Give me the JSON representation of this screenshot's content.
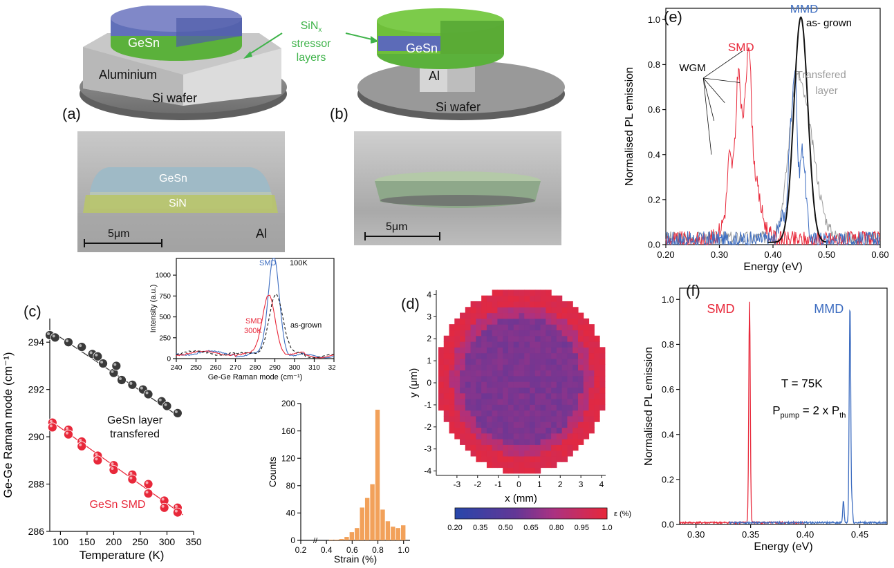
{
  "figure": {
    "panel_labels": {
      "a": "(a)",
      "b": "(b)",
      "c": "(c)",
      "d": "(d)",
      "e": "(e)",
      "f": "(f)"
    },
    "schematic_a": {
      "gesn": "GeSn",
      "aluminium": "Aluminium",
      "si_wafer": "Si wafer"
    },
    "schematic_b": {
      "gesn": "GeSn",
      "al": "Al",
      "si_wafer": "Si wafer"
    },
    "stressor_label": {
      "line1": "SiN",
      "sub": "x",
      "line2": "stressor layers"
    },
    "sem_a": {
      "gesn": "GeSn",
      "sin": "SiN",
      "al": "Al",
      "scale": "5μm"
    },
    "sem_b": {
      "scale": "5μm"
    }
  },
  "colors": {
    "gesn_blue": "#5c6bb8",
    "sin_green": "#6fbf3a",
    "smd_red": "#e8283a",
    "mmd_blue": "#3c6cc0",
    "grey": "#9a9a9a",
    "orange": "#f2a15a",
    "stressor_green": "#3fb34a"
  },
  "chart_data": [
    {
      "id": "c",
      "type": "scatter",
      "xlabel": "Temperature (K)",
      "ylabel": "Ge-Ge Raman mode (cm⁻¹)",
      "xlim": [
        80,
        350
      ],
      "ylim": [
        286,
        295
      ],
      "xticks": [
        100,
        150,
        200,
        250,
        300,
        350
      ],
      "yticks": [
        286,
        288,
        290,
        292,
        294
      ],
      "series": [
        {
          "name": "GeSn layer transfered",
          "label_lines": [
            "GeSn layer",
            "transfered"
          ],
          "color": "#3a3a3a",
          "fit": [
            [
              80,
              294.5
            ],
            [
              320,
              290.9
            ]
          ],
          "points": [
            [
              80,
              294.3
            ],
            [
              90,
              294.2
            ],
            [
              115,
              294.0
            ],
            [
              140,
              293.8
            ],
            [
              160,
              293.5
            ],
            [
              170,
              293.4
            ],
            [
              180,
              293.1
            ],
            [
              200,
              292.7
            ],
            [
              205,
              293.0
            ],
            [
              215,
              292.4
            ],
            [
              235,
              292.2
            ],
            [
              255,
              292.0
            ],
            [
              265,
              291.8
            ],
            [
              290,
              291.5
            ],
            [
              300,
              291.3
            ],
            [
              320,
              291.0
            ]
          ]
        },
        {
          "name": "GeSn SMD",
          "label_lines": [
            "GeSn SMD"
          ],
          "color": "#e8283a",
          "fit": [
            [
              80,
              290.7
            ],
            [
              330,
              286.7
            ]
          ],
          "points": [
            [
              85,
              290.6
            ],
            [
              85,
              290.4
            ],
            [
              115,
              290.3
            ],
            [
              115,
              290.1
            ],
            [
              140,
              289.8
            ],
            [
              140,
              289.6
            ],
            [
              170,
              289.2
            ],
            [
              170,
              289.0
            ],
            [
              200,
              288.8
            ],
            [
              200,
              288.6
            ],
            [
              235,
              288.4
            ],
            [
              235,
              288.2
            ],
            [
              265,
              288.0
            ],
            [
              265,
              287.6
            ],
            [
              295,
              287.3
            ],
            [
              295,
              287.0
            ],
            [
              320,
              287.0
            ],
            [
              320,
              286.8
            ]
          ]
        }
      ]
    },
    {
      "id": "c-inset",
      "type": "line",
      "xlabel": "Ge-Ge Raman mode (cm⁻¹)",
      "ylabel": "Intensity (a.u.)",
      "xlim": [
        240,
        320
      ],
      "ylim": [
        0,
        1200
      ],
      "xticks": [
        240,
        250,
        260,
        270,
        280,
        290,
        300,
        310,
        320
      ],
      "yticks": [
        0,
        250,
        500,
        750,
        1000
      ],
      "annotations": {
        "smd_100k_a": "SMD",
        "smd_100k_b": "100K",
        "smd_300k_a": "SMD",
        "smd_300k_b": "300K",
        "asgrown": "as-grown"
      },
      "series": [
        {
          "name": "SMD 100K",
          "color": "#3c6cc0",
          "peak": 289.5,
          "height": 1180,
          "width": 2.8
        },
        {
          "name": "SMD 300K",
          "color": "#e8283a",
          "peak": 287,
          "height": 730,
          "width": 3.2
        },
        {
          "name": "as-grown",
          "color": "#111111",
          "dashed": true,
          "peak": 290.5,
          "height": 740,
          "width": 3.5
        }
      ]
    },
    {
      "id": "histogram",
      "type": "bar",
      "xlabel": "Strain (%)",
      "ylabel": "Counts",
      "xlim": [
        0.2,
        1.05
      ],
      "ylim": [
        0,
        200
      ],
      "xticks": [
        0.2,
        0.4,
        0.6,
        0.8,
        1.0
      ],
      "yticks": [
        0,
        40,
        80,
        120,
        160,
        200
      ],
      "bin_width": 0.04,
      "bins": [
        [
          0.44,
          1
        ],
        [
          0.48,
          1
        ],
        [
          0.52,
          2
        ],
        [
          0.56,
          5
        ],
        [
          0.6,
          12
        ],
        [
          0.64,
          18
        ],
        [
          0.68,
          48
        ],
        [
          0.72,
          62
        ],
        [
          0.76,
          82
        ],
        [
          0.8,
          191
        ],
        [
          0.84,
          45
        ],
        [
          0.88,
          28
        ],
        [
          0.92,
          20
        ],
        [
          0.96,
          18
        ],
        [
          1.0,
          22
        ]
      ]
    },
    {
      "id": "d",
      "type": "heatmap",
      "xlabel": "x (mm)",
      "ylabel": "y (μm)",
      "xlim": [
        -4,
        4.2
      ],
      "ylim": [
        -4.2,
        4.2
      ],
      "xticks": [
        -3,
        -2,
        -1,
        0,
        1,
        2,
        3,
        4
      ],
      "yticks": [
        -4,
        -3,
        -2,
        -1,
        0,
        1,
        2,
        3,
        4
      ],
      "colorbar": {
        "label": "ε (%)",
        "ticks": [
          "0.20",
          "0.35",
          "0.50",
          "0.65",
          "0.80",
          "0.95",
          "1.0"
        ],
        "min": 0.2,
        "max": 1.0
      }
    },
    {
      "id": "e",
      "type": "line",
      "xlabel": "Energy (eV)",
      "ylabel": "Normalised PL emission",
      "xlim": [
        0.2,
        0.6
      ],
      "ylim": [
        0,
        1.05
      ],
      "xticks": [
        0.2,
        0.3,
        0.4,
        0.5,
        0.6
      ],
      "yticks": [
        0.0,
        0.2,
        0.4,
        0.6,
        0.8,
        1.0
      ],
      "annotations": {
        "smd": "SMD",
        "mmd": "MMD",
        "asgrown": "as- grown",
        "wgm": "WGM",
        "transfered_a": "Transfered",
        "transfered_b": "layer"
      },
      "series": [
        {
          "name": "SMD",
          "color": "#e8283a"
        },
        {
          "name": "MMD",
          "color": "#3c6cc0"
        },
        {
          "name": "Transfered layer",
          "color": "#9a9a9a"
        },
        {
          "name": "as- grown",
          "color": "#111111"
        }
      ]
    },
    {
      "id": "f",
      "type": "line",
      "xlabel": "Energy (eV)",
      "ylabel": "Normalised PL emission",
      "xlim": [
        0.285,
        0.475
      ],
      "ylim": [
        0,
        1.05
      ],
      "xticks": [
        0.3,
        0.35,
        0.4,
        0.45
      ],
      "yticks": [
        0.0,
        0.2,
        0.4,
        0.6,
        0.8,
        1.0
      ],
      "annotations": {
        "smd": "SMD",
        "mmd": "MMD",
        "temp": "T = 75K",
        "ppump_a": "P",
        "ppump_sub1": "pump",
        "ppump_b": " = 2 x P",
        "ppump_sub2": "th"
      },
      "series": [
        {
          "name": "SMD",
          "color": "#e8283a",
          "peak": 0.349,
          "height": 0.98
        },
        {
          "name": "MMD",
          "color": "#3c6cc0",
          "peak": 0.441,
          "height": 0.98,
          "side_peak": 0.435,
          "side_height": 0.1
        }
      ]
    }
  ]
}
